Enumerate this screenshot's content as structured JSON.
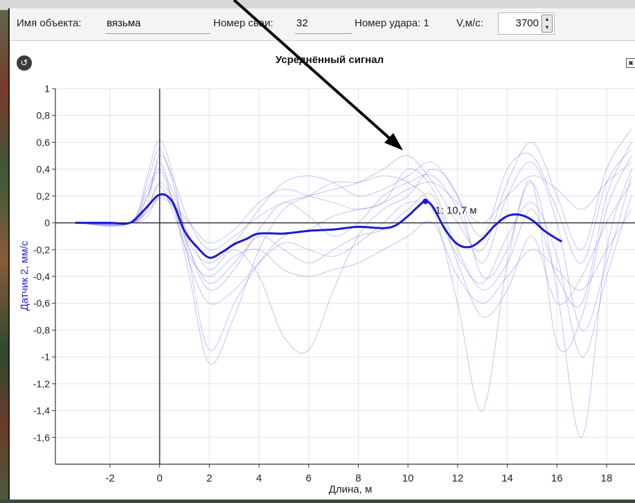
{
  "toolbar": {
    "object_label": "Имя объекта:",
    "object_value": "вязьма",
    "pile_label": "Номер сваи:",
    "pile_value": "32",
    "strike_label": "Номер удара: 1",
    "velocity_label": "V,м/с:",
    "velocity_value": "3700"
  },
  "chart_data": {
    "type": "line",
    "title": "Усреднённый сигнал",
    "xlabel": "Длина, м",
    "ylabel": "Датчик 2, мм/с",
    "xlim": [
      -4.2,
      19.2
    ],
    "ylim": [
      -1.8,
      1.0
    ],
    "x_ticks": [
      -2,
      0,
      2,
      4,
      6,
      8,
      10,
      12,
      14,
      16,
      18
    ],
    "y_ticks": [
      1,
      0.8,
      0.6,
      0.4,
      0.2,
      0,
      -0.2,
      -0.4,
      -0.6,
      -0.8,
      -1,
      -1.2,
      -1.4,
      -1.6
    ],
    "y_tick_labels": [
      "1",
      "0,8",
      "0,6",
      "0,4",
      "0,2",
      "0",
      "-0,2",
      "-0,4",
      "-0,6",
      "-0,8",
      "-1",
      "-1,2",
      "-1,4",
      "-1,6"
    ],
    "grid": true,
    "colors": {
      "mean": "#1a1ad0",
      "traces": "#6a6af0",
      "grid": "#e2e2e8"
    },
    "series": [
      {
        "x": [
          -3.4,
          -2,
          -1.2,
          -0.6,
          0,
          0.5,
          1,
          1.5,
          2,
          2.5,
          3,
          3.5,
          4,
          5,
          6,
          7,
          8,
          9,
          9.5,
          10,
          10.4,
          10.7,
          11,
          11.5,
          12,
          12.5,
          13,
          13.5,
          14,
          14.5,
          15,
          15.5,
          16,
          16.2
        ],
        "y": [
          0,
          0,
          0,
          0.1,
          0.21,
          0.16,
          -0.06,
          -0.18,
          -0.26,
          -0.22,
          -0.16,
          -0.12,
          -0.08,
          -0.08,
          -0.06,
          -0.05,
          -0.03,
          -0.04,
          -0.02,
          0.05,
          0.12,
          0.16,
          0.12,
          -0.05,
          -0.16,
          -0.18,
          -0.12,
          -0.02,
          0.05,
          0.06,
          0.02,
          -0.06,
          -0.12,
          -0.14
        ]
      }
    ],
    "background_traces": [
      {
        "x": [
          -3.4,
          -1.2,
          -0.5,
          0,
          0.6,
          1.2,
          2,
          3,
          4,
          5,
          6,
          7,
          8,
          9,
          10,
          11,
          12,
          13,
          14,
          15,
          16,
          17,
          18,
          19
        ],
        "y": [
          0,
          0,
          0.35,
          0.62,
          0.3,
          -0.3,
          -0.95,
          -0.6,
          -0.3,
          -0.1,
          -0.05,
          0.05,
          0.1,
          0.15,
          0.4,
          0.25,
          -0.2,
          -0.5,
          -0.3,
          0.1,
          -0.4,
          -0.6,
          0.2,
          0.6
        ]
      },
      {
        "x": [
          -3.4,
          -1.2,
          -0.5,
          0,
          0.6,
          1.2,
          2,
          3,
          4,
          5,
          6,
          7,
          8,
          9,
          10,
          11,
          12,
          13,
          14,
          15,
          16,
          17,
          18,
          19
        ],
        "y": [
          0,
          0,
          0.2,
          0.45,
          0.1,
          -0.4,
          -1.05,
          -0.7,
          -0.2,
          0.1,
          0.2,
          0.3,
          0.3,
          0.35,
          0.3,
          0.1,
          -0.6,
          -1.4,
          -0.3,
          0.3,
          -0.5,
          -1.6,
          -0.2,
          0.4
        ]
      },
      {
        "x": [
          -3.4,
          -1.2,
          -0.5,
          0,
          0.6,
          1.2,
          2,
          3,
          4,
          5,
          6,
          7,
          8,
          9,
          10,
          11,
          12,
          13,
          14,
          15,
          16,
          17,
          18,
          19
        ],
        "y": [
          0,
          0,
          0.1,
          0.3,
          0.15,
          -0.1,
          -0.35,
          -0.2,
          -0.4,
          -0.85,
          -0.95,
          -0.5,
          -0.1,
          0.1,
          0.2,
          0.4,
          0.2,
          -0.4,
          -0.2,
          0.3,
          -0.9,
          -0.7,
          0.1,
          0.5
        ]
      },
      {
        "x": [
          -3.4,
          -1.2,
          -0.5,
          0,
          0.6,
          1.2,
          2,
          3,
          4,
          5,
          6,
          7,
          8,
          9,
          10,
          11,
          12,
          13,
          14,
          15,
          16,
          17,
          18,
          19
        ],
        "y": [
          0,
          0,
          0.15,
          0.5,
          0.3,
          0,
          -0.2,
          -0.1,
          0.05,
          0.15,
          0.2,
          0.25,
          0.3,
          0.4,
          0.5,
          0.3,
          0,
          -0.2,
          0.3,
          0.6,
          0.2,
          -0.2,
          0.4,
          0.7
        ]
      },
      {
        "x": [
          -3.4,
          -1.2,
          -0.5,
          0,
          0.6,
          1.2,
          2,
          3,
          4,
          5,
          6,
          7,
          8,
          9,
          10,
          11,
          12,
          13,
          14,
          15,
          16,
          17,
          18,
          19
        ],
        "y": [
          0,
          0,
          0.05,
          0.2,
          0.1,
          -0.2,
          -0.45,
          -0.3,
          -0.1,
          -0.2,
          -0.3,
          -0.2,
          -0.1,
          -0.05,
          0.1,
          0.2,
          -0.3,
          -0.7,
          -0.5,
          -0.1,
          -0.6,
          -0.4,
          0,
          0.3
        ]
      },
      {
        "x": [
          -3.4,
          -1.2,
          -0.5,
          0,
          0.6,
          1.2,
          2,
          3,
          4,
          5,
          6,
          7,
          8,
          9,
          10,
          11,
          12,
          13,
          14,
          15,
          16,
          17,
          18,
          19
        ],
        "y": [
          0,
          0,
          0.25,
          0.4,
          0.2,
          -0.15,
          -0.3,
          -0.15,
          0.1,
          0.3,
          0.35,
          0.3,
          0.2,
          0.25,
          0.35,
          0.45,
          0.2,
          -0.1,
          0.4,
          0.5,
          0.1,
          -0.3,
          0.3,
          0.55
        ]
      },
      {
        "x": [
          -3.4,
          -1.2,
          -0.5,
          0,
          0.6,
          1.2,
          2,
          3,
          4,
          5,
          6,
          7,
          8,
          9,
          10,
          11,
          12,
          13,
          14,
          15,
          16,
          17,
          18,
          19
        ],
        "y": [
          0,
          0,
          0.12,
          0.28,
          0.05,
          -0.25,
          -0.4,
          -0.25,
          -0.2,
          -0.35,
          -0.4,
          -0.35,
          -0.3,
          -0.2,
          -0.1,
          0,
          -0.4,
          -0.6,
          -0.4,
          -0.2,
          -0.35,
          -0.5,
          -0.2,
          0.1
        ]
      },
      {
        "x": [
          -3.4,
          -1.2,
          -0.5,
          0,
          0.6,
          1.2,
          2,
          3,
          4,
          5,
          6,
          7,
          8,
          9,
          10,
          11,
          12,
          13,
          14,
          15,
          16,
          17,
          18,
          19
        ],
        "y": [
          0,
          0,
          0.3,
          0.55,
          0.25,
          -0.2,
          -0.5,
          -0.35,
          -0.05,
          0.15,
          0.05,
          -0.1,
          0,
          0.2,
          0.3,
          0.35,
          0.1,
          -0.3,
          0.2,
          0.45,
          0,
          -0.8,
          -0.3,
          0.35
        ]
      },
      {
        "x": [
          -3.4,
          -1.2,
          -0.5,
          0,
          0.6,
          1.2,
          2,
          3,
          4,
          5,
          6,
          7,
          8,
          9,
          10,
          11,
          12,
          13,
          14,
          15,
          16,
          17,
          18,
          19
        ],
        "y": [
          0,
          0,
          0.08,
          0.18,
          0.12,
          0,
          -0.15,
          -0.05,
          0.15,
          0.25,
          0.2,
          0.15,
          0.1,
          0.15,
          0.25,
          0.3,
          0.15,
          0,
          0.2,
          0.35,
          0.25,
          0.1,
          0.3,
          0.45
        ]
      },
      {
        "x": [
          -3.4,
          -1.2,
          -0.5,
          0,
          0.6,
          1.2,
          2,
          3,
          4,
          5,
          6,
          7,
          8,
          9,
          10,
          11,
          12,
          13,
          14,
          15,
          16,
          17,
          18,
          19
        ],
        "y": [
          0,
          0,
          0.2,
          0.38,
          0.12,
          -0.3,
          -0.6,
          -0.5,
          -0.3,
          -0.15,
          -0.2,
          -0.25,
          -0.15,
          0,
          0.15,
          0.1,
          -0.25,
          -0.45,
          -0.1,
          0.15,
          -0.25,
          -1.0,
          -0.4,
          0.2
        ]
      }
    ],
    "annotation": {
      "text": "1: 10,7 м",
      "x": 10.7,
      "y": 0.16
    }
  }
}
